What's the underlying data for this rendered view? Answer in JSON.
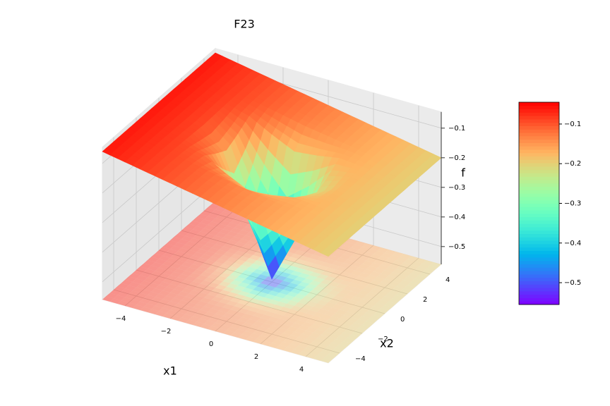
{
  "chart_data": {
    "type": "surface",
    "title": "F23",
    "x_label": "x1",
    "y_label": "x2",
    "z_label": "f",
    "x": [
      -5,
      -4,
      -3,
      -2,
      -1,
      0,
      1,
      2,
      3,
      4,
      5
    ],
    "y": [
      -5,
      -4,
      -3,
      -2,
      -1,
      0,
      1,
      2,
      3,
      4,
      5
    ],
    "z": [
      [
        -0.06,
        -0.074,
        -0.088,
        -0.102,
        -0.116,
        -0.13,
        -0.144,
        -0.158,
        -0.172,
        -0.186,
        -0.2
      ],
      [
        -0.06,
        -0.074,
        -0.088,
        -0.102,
        -0.116,
        -0.13,
        -0.144,
        -0.158,
        -0.172,
        -0.186,
        -0.2
      ],
      [
        -0.06,
        -0.074,
        -0.088,
        -0.103,
        -0.119,
        -0.135,
        -0.147,
        -0.159,
        -0.172,
        -0.186,
        -0.2
      ],
      [
        -0.06,
        -0.074,
        -0.089,
        -0.11,
        -0.151,
        -0.187,
        -0.179,
        -0.166,
        -0.173,
        -0.186,
        -0.2
      ],
      [
        -0.06,
        -0.074,
        -0.091,
        -0.137,
        -0.271,
        -0.385,
        -0.299,
        -0.193,
        -0.175,
        -0.186,
        -0.2
      ],
      [
        -0.06,
        -0.074,
        -0.093,
        -0.159,
        -0.371,
        -0.55,
        -0.399,
        -0.215,
        -0.177,
        -0.186,
        -0.2
      ],
      [
        -0.06,
        -0.074,
        -0.091,
        -0.137,
        -0.271,
        -0.385,
        -0.299,
        -0.193,
        -0.175,
        -0.186,
        -0.2
      ],
      [
        -0.06,
        -0.074,
        -0.089,
        -0.11,
        -0.151,
        -0.187,
        -0.179,
        -0.166,
        -0.173,
        -0.186,
        -0.2
      ],
      [
        -0.06,
        -0.074,
        -0.088,
        -0.103,
        -0.119,
        -0.135,
        -0.147,
        -0.159,
        -0.172,
        -0.186,
        -0.2
      ],
      [
        -0.06,
        -0.074,
        -0.088,
        -0.102,
        -0.116,
        -0.13,
        -0.144,
        -0.158,
        -0.172,
        -0.186,
        -0.2
      ],
      [
        -0.06,
        -0.074,
        -0.088,
        -0.102,
        -0.116,
        -0.13,
        -0.144,
        -0.158,
        -0.172,
        -0.186,
        -0.2
      ]
    ],
    "xlim": [
      -5,
      5
    ],
    "ylim": [
      -5,
      5
    ],
    "zlim": [
      -0.56,
      -0.045
    ],
    "xticks": [
      {
        "value": -4,
        "label": "−4"
      },
      {
        "value": -2,
        "label": "−2"
      },
      0,
      2,
      4
    ],
    "yticks": [
      {
        "value": -4,
        "label": "−4"
      },
      {
        "value": -2,
        "label": "−2"
      },
      0,
      2,
      4
    ],
    "zticks": [
      {
        "value": -0.5,
        "label": "−0.5"
      },
      {
        "value": -0.4,
        "label": "−0.4"
      },
      {
        "value": -0.3,
        "label": "−0.3"
      },
      {
        "value": -0.2,
        "label": "−0.2"
      },
      {
        "value": -0.1,
        "label": "−0.1"
      }
    ],
    "colormap": "rainbow",
    "grid": true,
    "colorbar": {
      "clim": [
        -0.555,
        -0.045
      ],
      "ticks": [
        {
          "value": -0.5,
          "label": "−0.5"
        },
        {
          "value": -0.4,
          "label": "−0.4"
        },
        {
          "value": -0.3,
          "label": "−0.3"
        },
        {
          "value": -0.2,
          "label": "−0.2"
        },
        {
          "value": -0.1,
          "label": "−0.1"
        }
      ]
    }
  }
}
